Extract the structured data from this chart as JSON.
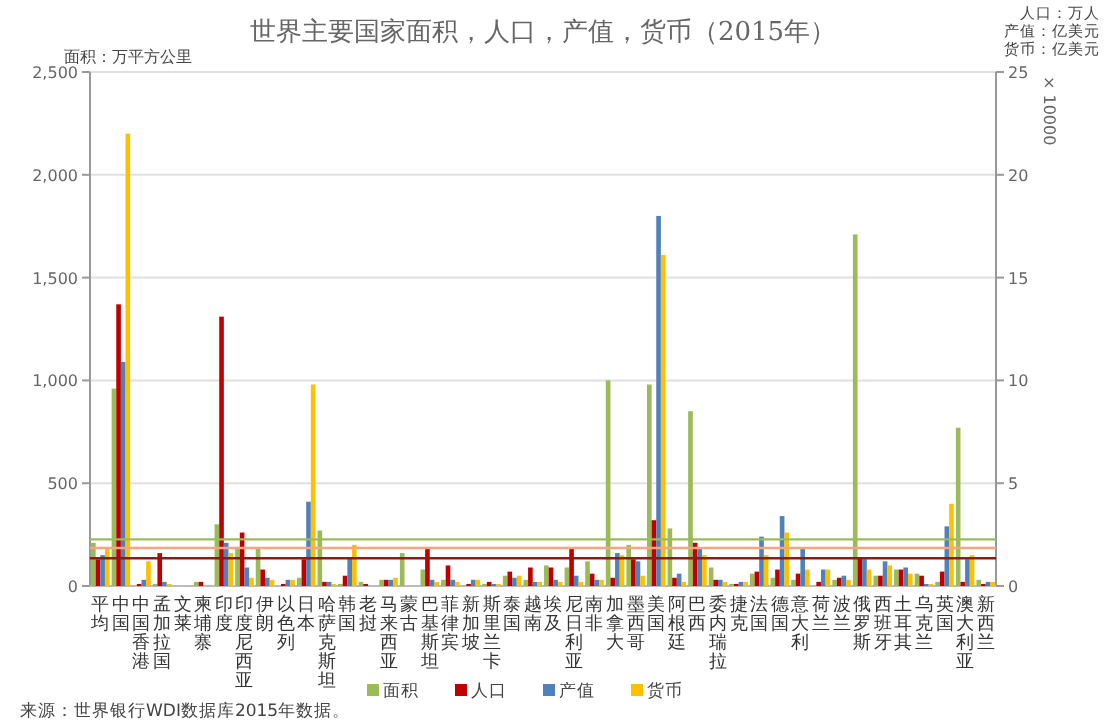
{
  "chart_data": {
    "type": "bar",
    "title": "世界主要国家面积，人口，产值，货币（2015年）",
    "ylabel": "面积：万平方公里",
    "y2label": "× 10000",
    "annotations": [
      "人口：万人",
      "产值：亿美元",
      "货币：亿美元",
      "来源：世界银行WDI数据库2015年数据。"
    ],
    "categories": [
      "平均",
      "中国",
      "中国香港",
      "孟加拉国",
      "文莱",
      "柬埔寨",
      "印度",
      "印度尼西亚",
      "伊朗",
      "以色列",
      "日本",
      "哈萨克斯坦",
      "韩国",
      "老挝",
      "马来西亚",
      "蒙古",
      "巴基斯坦",
      "菲律宾",
      "新加坡",
      "斯里兰卡",
      "泰国",
      "越南",
      "埃及",
      "尼日利亚",
      "南非",
      "加拿大",
      "墨西哥",
      "美国",
      "阿根廷",
      "巴西",
      "委内瑞拉",
      "捷克",
      "法国",
      "德国",
      "意大利",
      "荷兰",
      "波兰",
      "俄罗斯",
      "西班牙",
      "土耳其",
      "乌克兰",
      "英国",
      "澳大利亚",
      "新西兰"
    ],
    "series": [
      {
        "name": "面积",
        "color": "#9bbb59",
        "values": [
          210,
          960,
          0,
          10,
          0,
          20,
          300,
          190,
          180,
          0,
          40,
          270,
          10,
          20,
          30,
          160,
          80,
          30,
          0,
          10,
          50,
          30,
          100,
          90,
          120,
          1000,
          200,
          980,
          280,
          850,
          90,
          10,
          60,
          40,
          30,
          0,
          30,
          1710,
          50,
          80,
          60,
          20,
          770,
          30
        ]
      },
      {
        "name": "人口",
        "color": "#c00000",
        "axis": "y2",
        "values": [
          1.3,
          13.7,
          0.1,
          1.6,
          0,
          0.2,
          13.1,
          2.6,
          0.8,
          0.1,
          1.3,
          0.2,
          0.5,
          0.1,
          0.3,
          0,
          1.9,
          1.0,
          0.1,
          0.2,
          0.7,
          0.9,
          0.9,
          1.8,
          0.6,
          0.4,
          1.3,
          3.2,
          0.4,
          2.1,
          0.3,
          0.1,
          0.7,
          0.8,
          0.6,
          0.2,
          0.4,
          1.4,
          0.5,
          0.8,
          0.5,
          0.7,
          0.2,
          0.1
        ]
      },
      {
        "name": "产值",
        "color": "#4f81bd",
        "axis": "y2",
        "values": [
          1.5,
          10.9,
          0.3,
          0.2,
          0,
          0,
          2.1,
          0.9,
          0.4,
          0.3,
          4.1,
          0.2,
          1.4,
          0,
          0.3,
          0,
          0.3,
          0.3,
          0.3,
          0.1,
          0.4,
          0.2,
          0.3,
          0.5,
          0.3,
          1.6,
          1.2,
          18.0,
          0.6,
          1.8,
          0.3,
          0.2,
          2.4,
          3.4,
          1.8,
          0.8,
          0.5,
          1.3,
          1.2,
          0.9,
          0.1,
          2.9,
          1.3,
          0.2
        ]
      },
      {
        "name": "货币",
        "color": "#ffc000",
        "axis": "y2",
        "values": [
          1.9,
          22.0,
          1.2,
          0.1,
          0,
          0,
          1.6,
          0.4,
          0.3,
          0.3,
          9.8,
          0.1,
          2.0,
          0,
          0.4,
          0,
          0.2,
          0.2,
          0.3,
          0.1,
          0.5,
          0.2,
          0.2,
          0.2,
          0.3,
          1.5,
          0.5,
          16.1,
          0.2,
          1.5,
          0.2,
          0.2,
          1.5,
          2.6,
          0.8,
          0.8,
          0.3,
          0.8,
          1.0,
          0.6,
          0.1,
          4.0,
          1.5,
          0.2
        ]
      }
    ],
    "ylim": [
      0,
      2500
    ],
    "yticks": [
      0,
      {
        "value": 500,
        "label": "500"
      },
      {
        "value": 1000,
        "label": "1,000"
      },
      {
        "value": 1500,
        "label": "1,500"
      },
      {
        "value": 2000,
        "label": "2,000"
      },
      {
        "value": 2500,
        "label": "2,500"
      }
    ],
    "y2lim": [
      0,
      25
    ],
    "y2ticks": [
      0,
      5,
      10,
      15,
      20,
      25
    ],
    "ref_lines": [
      {
        "axis": "y",
        "value": 227,
        "color": "#9bbb59"
      },
      {
        "axis": "y2",
        "value": 1.85,
        "color": "#f4a582"
      },
      {
        "axis": "y2",
        "value": 1.35,
        "color": "#8b1a1a"
      }
    ],
    "grid": "y",
    "legend": "bottom"
  }
}
